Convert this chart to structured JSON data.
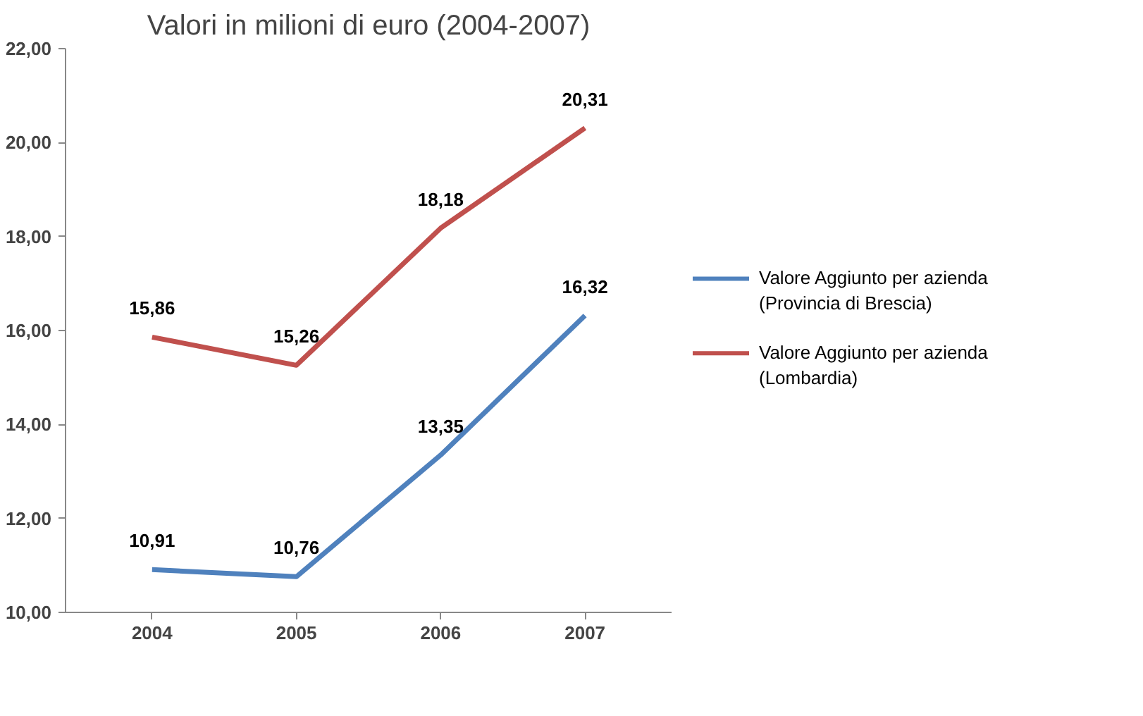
{
  "chart_data": {
    "type": "line",
    "title": "Valori in milioni di euro (2004-2007)",
    "categories": [
      "2004",
      "2005",
      "2006",
      "2007"
    ],
    "series": [
      {
        "name": "Valore Aggiunto per azienda (Provincia di Brescia)",
        "color": "#4f81bd",
        "values": [
          10.91,
          10.76,
          13.35,
          16.32
        ],
        "value_labels": [
          "10,91",
          "10,76",
          "13,35",
          "16,32"
        ]
      },
      {
        "name": "Valore Aggiunto per azienda (Lombardia)",
        "color": "#c0504d",
        "values": [
          15.86,
          15.26,
          18.18,
          20.31
        ],
        "value_labels": [
          "15,86",
          "15,26",
          "18,18",
          "20,31"
        ]
      }
    ],
    "ylim": [
      10,
      22
    ],
    "yticks": [
      {
        "value": 10,
        "label": "10,00"
      },
      {
        "value": 12,
        "label": "12,00"
      },
      {
        "value": 14,
        "label": "14,00"
      },
      {
        "value": 16,
        "label": "16,00"
      },
      {
        "value": 18,
        "label": "18,00"
      },
      {
        "value": 20,
        "label": "20,00"
      },
      {
        "value": 22,
        "label": "22,00"
      }
    ],
    "data_labels": true,
    "grid": false,
    "legend": "right",
    "marker": "none",
    "line_style": "solid"
  }
}
